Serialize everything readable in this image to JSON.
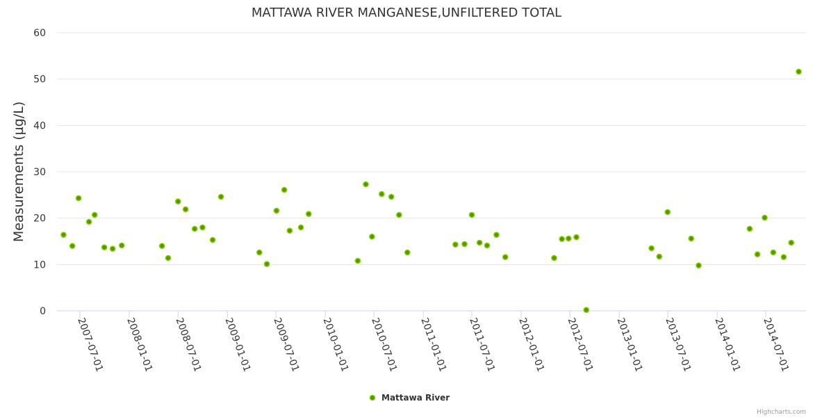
{
  "chart_data": {
    "type": "scatter",
    "title": "MATTAWA RIVER MANGANESE,UNFILTERED TOTAL",
    "xlabel": "",
    "ylabel": "Measurements (µg/L)",
    "ylim": [
      0,
      60
    ],
    "yticks": [
      "0",
      "10",
      "20",
      "30",
      "40",
      "50",
      "60"
    ],
    "xticks": [
      "2007-07-01",
      "2008-01-01",
      "2008-07-01",
      "2009-01-01",
      "2009-07-01",
      "2010-01-01",
      "2010-07-01",
      "2011-01-01",
      "2011-07-01",
      "2012-01-01",
      "2012-07-01",
      "2013-01-01",
      "2013-07-01",
      "2014-01-01",
      "2014-07-01"
    ],
    "grid": true,
    "legend_placement": "bottom-center",
    "credits": "Highcharts.com",
    "series": [
      {
        "name": "Mattawa River",
        "fill": "#4c9a00",
        "stroke": "#8cc800",
        "points": [
          [
            "2007-05-01",
            16.4
          ],
          [
            "2007-06-03",
            14.0
          ],
          [
            "2007-06-26",
            24.3
          ],
          [
            "2007-08-04",
            19.2
          ],
          [
            "2007-08-25",
            20.7
          ],
          [
            "2007-09-30",
            13.7
          ],
          [
            "2007-10-31",
            13.4
          ],
          [
            "2007-12-04",
            14.1
          ],
          [
            "2008-05-02",
            14.0
          ],
          [
            "2008-05-25",
            11.4
          ],
          [
            "2008-07-01",
            23.6
          ],
          [
            "2008-07-29",
            21.9
          ],
          [
            "2008-09-01",
            17.7
          ],
          [
            "2008-09-30",
            18.0
          ],
          [
            "2008-11-07",
            15.3
          ],
          [
            "2008-12-08",
            24.6
          ],
          [
            "2009-04-30",
            12.6
          ],
          [
            "2009-05-28",
            10.1
          ],
          [
            "2009-07-03",
            21.6
          ],
          [
            "2009-08-01",
            26.1
          ],
          [
            "2009-08-21",
            17.3
          ],
          [
            "2009-10-02",
            18.0
          ],
          [
            "2009-10-31",
            20.9
          ],
          [
            "2010-05-02",
            10.8
          ],
          [
            "2010-06-01",
            27.3
          ],
          [
            "2010-06-24",
            16.0
          ],
          [
            "2010-07-30",
            25.2
          ],
          [
            "2010-09-04",
            24.6
          ],
          [
            "2010-10-03",
            20.7
          ],
          [
            "2010-11-03",
            12.6
          ],
          [
            "2011-05-01",
            14.3
          ],
          [
            "2011-06-04",
            14.4
          ],
          [
            "2011-07-01",
            20.7
          ],
          [
            "2011-07-30",
            14.7
          ],
          [
            "2011-08-27",
            14.1
          ],
          [
            "2011-10-01",
            16.4
          ],
          [
            "2011-11-03",
            11.6
          ],
          [
            "2012-05-03",
            11.4
          ],
          [
            "2012-06-01",
            15.5
          ],
          [
            "2012-06-26",
            15.6
          ],
          [
            "2012-07-25",
            15.9
          ],
          [
            "2012-08-31",
            0.2
          ],
          [
            "2013-05-01",
            13.5
          ],
          [
            "2013-05-30",
            11.7
          ],
          [
            "2013-06-30",
            21.3
          ],
          [
            "2013-09-26",
            15.6
          ],
          [
            "2013-10-24",
            9.8
          ],
          [
            "2014-05-02",
            17.7
          ],
          [
            "2014-05-31",
            12.2
          ],
          [
            "2014-06-27",
            20.1
          ],
          [
            "2014-07-29",
            12.6
          ],
          [
            "2014-09-06",
            11.6
          ],
          [
            "2014-10-04",
            14.7
          ],
          [
            "2014-11-01",
            51.6
          ]
        ]
      }
    ]
  }
}
